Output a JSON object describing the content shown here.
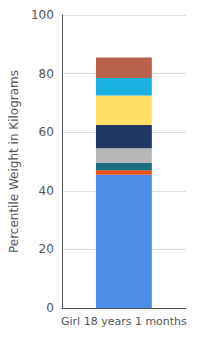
{
  "chart_data": {
    "type": "bar",
    "stacked": true,
    "grid": true,
    "ylabel": "Percentile Weight in Kilograms",
    "categories": [
      "Girl 18 years 1 months"
    ],
    "series": [
      {
        "color": "#4D8FE8",
        "values": [
          45.5
        ]
      },
      {
        "color": "#E84E0F",
        "values": [
          1.5
        ]
      },
      {
        "color": "#1A6E82",
        "values": [
          2.5
        ]
      },
      {
        "color": "#B8B8B8",
        "values": [
          5
        ]
      },
      {
        "color": "#1F3864",
        "values": [
          8
        ]
      },
      {
        "color": "#FFE066",
        "values": [
          10
        ]
      },
      {
        "color": "#1AB0E0",
        "values": [
          6
        ]
      },
      {
        "color": "#B8624A",
        "values": [
          7
        ]
      }
    ],
    "ylim": [
      0,
      100
    ],
    "yticks": [
      0,
      20,
      40,
      60,
      80,
      100
    ]
  }
}
